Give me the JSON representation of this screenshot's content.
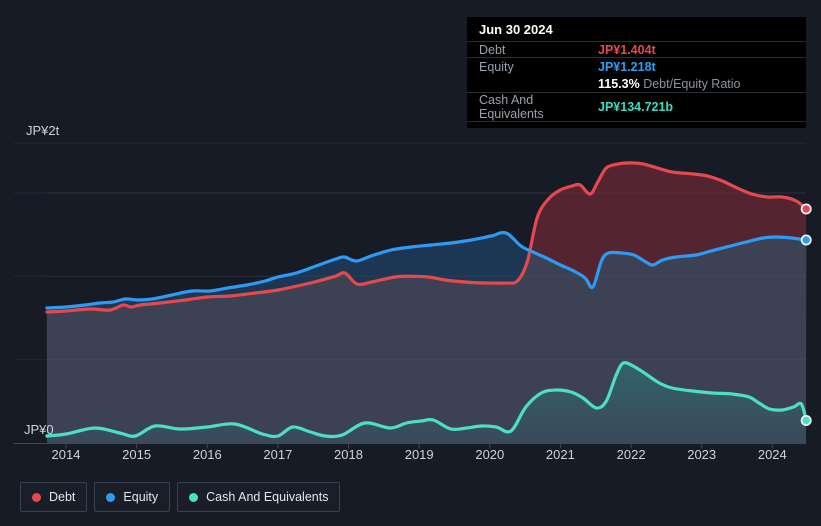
{
  "tooltip": {
    "date": "Jun 30 2024",
    "debt_label": "Debt",
    "debt_value": "JP¥1.404t",
    "equity_label": "Equity",
    "equity_value": "JP¥1.218t",
    "ratio_value": "115.3%",
    "ratio_label": "Debt/Equity Ratio",
    "cash_label": "Cash And Equivalents",
    "cash_value": "JP¥134.721b"
  },
  "y_axis": {
    "top": "JP¥2t",
    "bottom": "JP¥0"
  },
  "x_axis": {
    "years": [
      "2014",
      "2015",
      "2016",
      "2017",
      "2018",
      "2019",
      "2020",
      "2021",
      "2022",
      "2023",
      "2024"
    ]
  },
  "legend": {
    "items": [
      {
        "label": "Debt",
        "color": "#e5494d"
      },
      {
        "label": "Equity",
        "color": "#2e9bf3"
      },
      {
        "label": "Cash And Equivalents",
        "color": "#4ddfc3"
      }
    ]
  },
  "colors": {
    "background": "#161b25",
    "debt_line": "#e5494d",
    "equity_line": "#2e9bf3",
    "cash_line": "#4ddfc3",
    "debt_fill": "#552431",
    "equity_fill": "#1c3654",
    "overlap_fill": "#3d4154",
    "cash_fill": "#23918a",
    "gridline": "#232935",
    "axis_line": "#3e4755"
  },
  "chart_data": {
    "type": "area",
    "unit": "JP¥ trillion",
    "x_domain": [
      2013.73,
      2024.5
    ],
    "ylim": [
      0,
      2
    ],
    "gridlines_y": [
      0.5,
      1.0,
      1.5
    ],
    "grid": true,
    "legend_position": "bottom-left",
    "latest": {
      "date": "Jun 30 2024",
      "debt": "JP¥1.404t",
      "equity": "JP¥1.218t",
      "debt_equity_ratio": "115.3%",
      "cash_and_equivalents": "JP¥134.721b"
    },
    "series": [
      {
        "name": "Debt",
        "points": [
          [
            2013.73,
            0.786
          ],
          [
            2014.0,
            0.792
          ],
          [
            2014.34,
            0.804
          ],
          [
            2014.62,
            0.798
          ],
          [
            2014.81,
            0.828
          ],
          [
            2014.92,
            0.816
          ],
          [
            2015.05,
            0.828
          ],
          [
            2015.33,
            0.84
          ],
          [
            2015.69,
            0.858
          ],
          [
            2016.0,
            0.876
          ],
          [
            2016.32,
            0.882
          ],
          [
            2016.68,
            0.9
          ],
          [
            2017.0,
            0.918
          ],
          [
            2017.46,
            0.96
          ],
          [
            2017.81,
            1.0
          ],
          [
            2017.95,
            1.02
          ],
          [
            2018.12,
            0.954
          ],
          [
            2018.33,
            0.966
          ],
          [
            2018.66,
            0.996
          ],
          [
            2018.9,
            1.0
          ],
          [
            2019.13,
            0.996
          ],
          [
            2019.37,
            0.978
          ],
          [
            2019.65,
            0.966
          ],
          [
            2019.93,
            0.96
          ],
          [
            2020.22,
            0.96
          ],
          [
            2020.39,
            0.972
          ],
          [
            2020.53,
            1.086
          ],
          [
            2020.67,
            1.35
          ],
          [
            2020.83,
            1.464
          ],
          [
            2021.0,
            1.518
          ],
          [
            2021.17,
            1.542
          ],
          [
            2021.28,
            1.548
          ],
          [
            2021.42,
            1.494
          ],
          [
            2021.53,
            1.566
          ],
          [
            2021.65,
            1.65
          ],
          [
            2021.82,
            1.674
          ],
          [
            2021.99,
            1.68
          ],
          [
            2022.17,
            1.674
          ],
          [
            2022.37,
            1.65
          ],
          [
            2022.58,
            1.626
          ],
          [
            2022.87,
            1.614
          ],
          [
            2023.08,
            1.602
          ],
          [
            2023.29,
            1.572
          ],
          [
            2023.5,
            1.53
          ],
          [
            2023.71,
            1.494
          ],
          [
            2023.93,
            1.476
          ],
          [
            2024.14,
            1.476
          ],
          [
            2024.34,
            1.452
          ],
          [
            2024.48,
            1.404
          ]
        ]
      },
      {
        "name": "Equity",
        "points": [
          [
            2013.73,
            0.81
          ],
          [
            2014.0,
            0.816
          ],
          [
            2014.27,
            0.828
          ],
          [
            2014.48,
            0.84
          ],
          [
            2014.67,
            0.846
          ],
          [
            2014.84,
            0.864
          ],
          [
            2015.01,
            0.858
          ],
          [
            2015.22,
            0.864
          ],
          [
            2015.5,
            0.888
          ],
          [
            2015.78,
            0.912
          ],
          [
            2016.04,
            0.912
          ],
          [
            2016.29,
            0.93
          ],
          [
            2016.56,
            0.948
          ],
          [
            2016.82,
            0.972
          ],
          [
            2017.0,
            0.996
          ],
          [
            2017.26,
            1.02
          ],
          [
            2017.54,
            1.062
          ],
          [
            2017.82,
            1.104
          ],
          [
            2017.94,
            1.116
          ],
          [
            2018.11,
            1.092
          ],
          [
            2018.32,
            1.122
          ],
          [
            2018.6,
            1.158
          ],
          [
            2018.89,
            1.176
          ],
          [
            2019.17,
            1.188
          ],
          [
            2019.45,
            1.2
          ],
          [
            2019.74,
            1.218
          ],
          [
            2020.02,
            1.242
          ],
          [
            2020.23,
            1.26
          ],
          [
            2020.44,
            1.182
          ],
          [
            2020.61,
            1.146
          ],
          [
            2020.8,
            1.11
          ],
          [
            2021.0,
            1.068
          ],
          [
            2021.19,
            1.032
          ],
          [
            2021.35,
            0.99
          ],
          [
            2021.46,
            0.936
          ],
          [
            2021.58,
            1.092
          ],
          [
            2021.68,
            1.14
          ],
          [
            2021.86,
            1.14
          ],
          [
            2022.04,
            1.128
          ],
          [
            2022.21,
            1.086
          ],
          [
            2022.31,
            1.068
          ],
          [
            2022.45,
            1.098
          ],
          [
            2022.64,
            1.116
          ],
          [
            2022.92,
            1.128
          ],
          [
            2023.13,
            1.152
          ],
          [
            2023.35,
            1.176
          ],
          [
            2023.63,
            1.206
          ],
          [
            2023.87,
            1.23
          ],
          [
            2024.07,
            1.236
          ],
          [
            2024.27,
            1.23
          ],
          [
            2024.48,
            1.218
          ]
        ]
      },
      {
        "name": "Cash And Equivalents",
        "points": [
          [
            2013.73,
            0.042
          ],
          [
            2014.0,
            0.054
          ],
          [
            2014.41,
            0.09
          ],
          [
            2014.76,
            0.06
          ],
          [
            2014.98,
            0.042
          ],
          [
            2015.26,
            0.102
          ],
          [
            2015.61,
            0.084
          ],
          [
            2016.0,
            0.096
          ],
          [
            2016.39,
            0.114
          ],
          [
            2016.78,
            0.054
          ],
          [
            2017.0,
            0.042
          ],
          [
            2017.21,
            0.096
          ],
          [
            2017.46,
            0.066
          ],
          [
            2017.67,
            0.042
          ],
          [
            2017.91,
            0.048
          ],
          [
            2018.23,
            0.12
          ],
          [
            2018.59,
            0.09
          ],
          [
            2018.82,
            0.12
          ],
          [
            2019.03,
            0.132
          ],
          [
            2019.2,
            0.138
          ],
          [
            2019.45,
            0.084
          ],
          [
            2019.67,
            0.09
          ],
          [
            2019.88,
            0.102
          ],
          [
            2020.09,
            0.096
          ],
          [
            2020.3,
            0.072
          ],
          [
            2020.51,
            0.216
          ],
          [
            2020.73,
            0.3
          ],
          [
            2020.94,
            0.318
          ],
          [
            2021.15,
            0.306
          ],
          [
            2021.32,
            0.27
          ],
          [
            2021.51,
            0.21
          ],
          [
            2021.65,
            0.252
          ],
          [
            2021.79,
            0.408
          ],
          [
            2021.89,
            0.48
          ],
          [
            2022.03,
            0.462
          ],
          [
            2022.21,
            0.414
          ],
          [
            2022.4,
            0.36
          ],
          [
            2022.58,
            0.33
          ],
          [
            2022.87,
            0.312
          ],
          [
            2023.15,
            0.3
          ],
          [
            2023.43,
            0.294
          ],
          [
            2023.67,
            0.276
          ],
          [
            2023.81,
            0.24
          ],
          [
            2023.96,
            0.204
          ],
          [
            2024.13,
            0.198
          ],
          [
            2024.3,
            0.216
          ],
          [
            2024.41,
            0.234
          ],
          [
            2024.48,
            0.135
          ]
        ]
      }
    ]
  }
}
